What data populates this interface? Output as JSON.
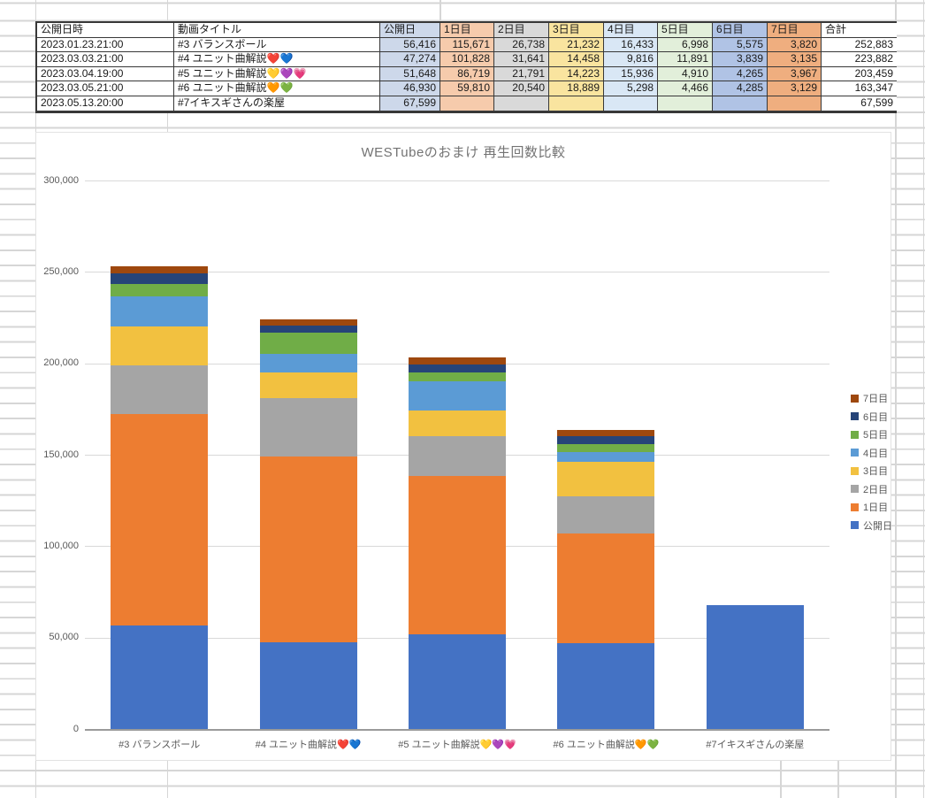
{
  "page": {
    "grid_color": "#d6d6d6"
  },
  "table": {
    "headers": [
      "公開日時",
      "動画タイトル",
      "公開日",
      "1日目",
      "2日目",
      "3日目",
      "4日目",
      "5日目",
      "6日目",
      "7日目",
      "合計"
    ],
    "column_fills": [
      "#ffffff",
      "#ffffff",
      "#cdd8ea",
      "#f6cbac",
      "#d9d9d9",
      "#f9e49f",
      "#d9e7f5",
      "#e2efda",
      "#b0c3e5",
      "#efae7f",
      "#ffffff"
    ],
    "rows": [
      [
        "2023.01.23.21:00",
        "#3 バランスボール",
        "56,416",
        "115,671",
        "26,738",
        "21,232",
        "16,433",
        "6,998",
        "5,575",
        "3,820",
        "252,883"
      ],
      [
        "2023.03.03.21:00",
        "#4 ユニット曲解説❤️💙",
        "47,274",
        "101,828",
        "31,641",
        "14,458",
        "9,816",
        "11,891",
        "3,839",
        "3,135",
        "223,882"
      ],
      [
        "2023.03.04.19:00",
        "#5 ユニット曲解説💛💜💗",
        "51,648",
        "86,719",
        "21,791",
        "14,223",
        "15,936",
        "4,910",
        "4,265",
        "3,967",
        "203,459"
      ],
      [
        "2023.03.05.21:00",
        "#6 ユニット曲解説🧡💚",
        "46,930",
        "59,810",
        "20,540",
        "18,889",
        "5,298",
        "4,466",
        "4,285",
        "3,129",
        "163,347"
      ],
      [
        "2023.05.13.20:00",
        "#7イキスギさんの楽屋",
        "67,599",
        "",
        "",
        "",
        "",
        "",
        "",
        "",
        "67,599"
      ]
    ]
  },
  "chart_data": {
    "type": "bar",
    "stacked": true,
    "title": "WESTubeのおまけ 再生回数比較",
    "categories": [
      "#3 バランスボール",
      "#4 ユニット曲解説❤️💙",
      "#5 ユニット曲解説💛💜💗",
      "#6 ユニット曲解説🧡💚",
      "#7イキスギさんの楽屋"
    ],
    "series": [
      {
        "name": "公開日",
        "color": "#4472c4",
        "values": [
          56416,
          47274,
          51648,
          46930,
          67599
        ]
      },
      {
        "name": "1日目",
        "color": "#ed7d31",
        "values": [
          115671,
          101828,
          86719,
          59810,
          null
        ]
      },
      {
        "name": "2日目",
        "color": "#a5a5a5",
        "values": [
          26738,
          31641,
          21791,
          20540,
          null
        ]
      },
      {
        "name": "3日目",
        "color": "#f2c140",
        "values": [
          21232,
          14458,
          14223,
          18889,
          null
        ]
      },
      {
        "name": "4日目",
        "color": "#5b9bd5",
        "values": [
          16433,
          9816,
          15936,
          5298,
          null
        ]
      },
      {
        "name": "5日目",
        "color": "#70ad47",
        "values": [
          6998,
          11891,
          4910,
          4466,
          null
        ]
      },
      {
        "name": "6日目",
        "color": "#264478",
        "values": [
          5575,
          3839,
          4265,
          4285,
          null
        ]
      },
      {
        "name": "7日目",
        "color": "#9e480e",
        "values": [
          3820,
          3135,
          3967,
          3129,
          null
        ]
      }
    ],
    "totals": [
      252883,
      223882,
      203459,
      163347,
      67599
    ],
    "ylim": [
      0,
      300000
    ],
    "ytick_interval": 50000,
    "ytick_labels": [
      "0",
      "50,000",
      "100,000",
      "150,000",
      "200,000",
      "250,000",
      "300,000"
    ],
    "grid": true,
    "legend_position": "right",
    "legend_order_top_to_bottom": [
      "7日目",
      "6日目",
      "5日目",
      "4日目",
      "3日目",
      "2日目",
      "1日目",
      "公開日"
    ]
  }
}
